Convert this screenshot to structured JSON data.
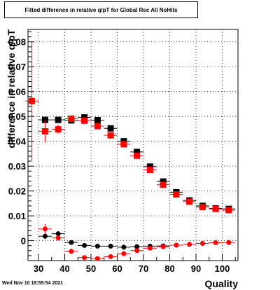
{
  "chart_data": {
    "type": "scatter",
    "title": "Fitted difference in relative q/pT for Global Rec All NoHits",
    "xlabel": "Quality",
    "ylabel": "difference in relative q/pT",
    "xlim": [
      26,
      106
    ],
    "ylim": [
      -0.008,
      0.085
    ],
    "x_ticks": [
      30,
      40,
      50,
      60,
      70,
      80,
      90,
      100
    ],
    "x_tick_labels": [
      "30",
      "40",
      "50",
      "60",
      "70",
      "80",
      "90",
      "100"
    ],
    "y_ticks": [
      0,
      0.01,
      0.02,
      0.03,
      0.04,
      0.05,
      0.06,
      0.07,
      0.08
    ],
    "y_tick_labels": [
      "0",
      "0.01",
      "0.02",
      "0.03",
      "0.04",
      "0.05",
      "0.06",
      "0.07",
      "0.08"
    ],
    "grid": true,
    "series": [
      {
        "marker": "square",
        "color": "#000000",
        "x": [
          32.5,
          37.5,
          42.5,
          47.5,
          52.5,
          57.5,
          62.5,
          67.5,
          72.5,
          77.5,
          82.5,
          87.5,
          92.5,
          97.5,
          102.5
        ],
        "y": [
          0.0486,
          0.0486,
          0.0484,
          0.0496,
          0.0485,
          0.0452,
          0.04,
          0.0357,
          0.0298,
          0.0238,
          0.0195,
          0.0162,
          0.014,
          0.013,
          0.0128
        ],
        "yerr": [
          0.001,
          0.0008,
          0.0006,
          0.0005,
          0.0005,
          0.0005,
          0.0005,
          0.0005,
          0.0005,
          0.0005,
          0.0004,
          0.0004,
          0.0004,
          0.0004,
          0.0004
        ]
      },
      {
        "marker": "square",
        "color": "#ff0000",
        "x": [
          27.5,
          32.5,
          37.5,
          42.5,
          47.5,
          52.5,
          57.5,
          62.5,
          67.5,
          72.5,
          77.5,
          82.5,
          87.5,
          92.5,
          97.5,
          102.5
        ],
        "y": [
          0.0562,
          0.044,
          0.0448,
          0.0491,
          0.0483,
          0.0461,
          0.0424,
          0.0388,
          0.0342,
          0.0285,
          0.0225,
          0.0186,
          0.0157,
          0.0135,
          0.0128,
          0.0123
        ],
        "yerr": [
          0.024,
          0.0045,
          0.0018,
          0.0012,
          0.0008,
          0.0006,
          0.0005,
          0.0005,
          0.0005,
          0.0005,
          0.0004,
          0.0004,
          0.0004,
          0.0004,
          0.0004,
          0.0004
        ]
      },
      {
        "marker": "circle",
        "color": "#000000",
        "x": [
          32.5,
          37.5,
          42.5,
          47.5,
          52.5,
          57.5,
          62.5,
          67.5,
          72.5,
          77.5
        ],
        "y": [
          0.0018,
          0.0028,
          -0.0007,
          -0.0019,
          -0.0022,
          -0.0022,
          -0.0026,
          -0.0024,
          -0.0022,
          -0.0021
        ],
        "yerr": [
          0.0012,
          0.0008,
          0.0005,
          0.0004,
          0.0003,
          0.0003,
          0.0003,
          0.0003,
          0.0003,
          0.0003
        ]
      },
      {
        "marker": "circle",
        "color": "#ff0000",
        "x": [
          32.5,
          37.5,
          42.5,
          47.5,
          52.5,
          57.5,
          62.5,
          67.5,
          72.5,
          77.5,
          82.5,
          87.5,
          92.5,
          97.5,
          102.5
        ],
        "y": [
          0.0047,
          0.0011,
          -0.0043,
          -0.0068,
          -0.0072,
          -0.0064,
          -0.0052,
          -0.004,
          -0.003,
          -0.0024,
          -0.0018,
          -0.0015,
          -0.0011,
          -0.0008,
          -0.0007
        ],
        "yerr": [
          0.002,
          0.001,
          0.0008,
          0.0006,
          0.0004,
          0.0004,
          0.0003,
          0.0003,
          0.0003,
          0.0003,
          0.0003,
          0.0003,
          0.0003,
          0.0003,
          0.0003
        ]
      }
    ]
  },
  "footer": {
    "timestamp": "Wed Nov 10 18:55:54 2021"
  }
}
